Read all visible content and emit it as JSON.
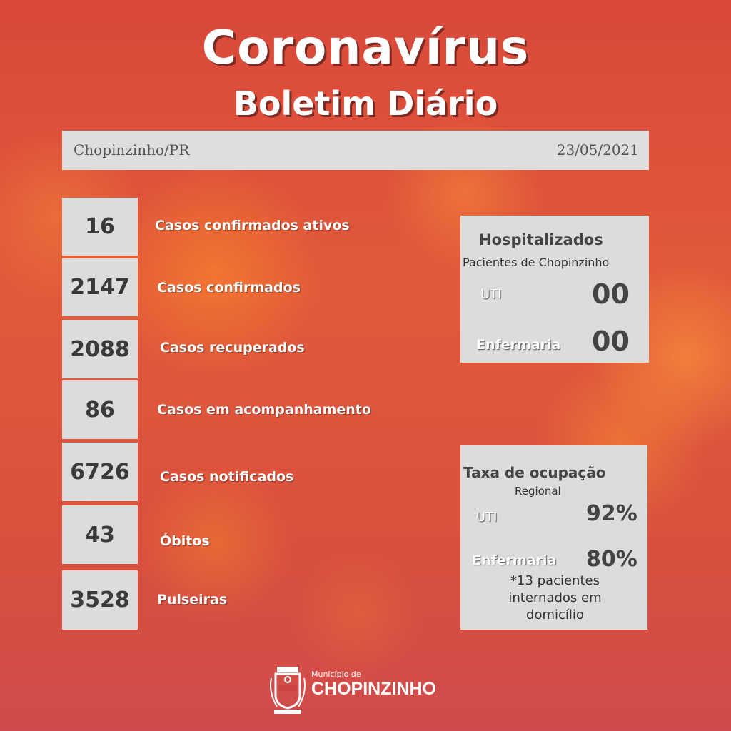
{
  "title": "Coronavírus",
  "subtitle": "Boletim Diário",
  "header": {
    "location": "Chopinzinho/PR",
    "date": "23/05/2021"
  },
  "stats": [
    {
      "value": "16",
      "label": "Casos confirmados ativos"
    },
    {
      "value": "2147",
      "label": "Casos confirmados"
    },
    {
      "value": "2088",
      "label": "Casos recuperados"
    },
    {
      "value": "86",
      "label": "Casos em acompanhamento"
    },
    {
      "value": "6726",
      "label": "Casos notificados"
    },
    {
      "value": "43",
      "label": "Óbitos"
    },
    {
      "value": "3528",
      "label": "Pulseiras"
    }
  ],
  "hospital": {
    "title": "Hospitalizados",
    "subtitle": "Pacientes de Chopinzinho",
    "uti_label": "UTI",
    "uti_value": "00",
    "enf_label": "Enfermaria",
    "enf_value": "00"
  },
  "occupancy": {
    "title": "Taxa de ocupação",
    "subtitle": "Regional",
    "uti_label": "UTI",
    "uti_value": "92%",
    "enf_label": "Enfermaria",
    "enf_value": "80%",
    "note": "*13 pacientes internados em domicílio"
  },
  "footer": {
    "small": "Município de",
    "name": "CHOPINZINHO"
  }
}
